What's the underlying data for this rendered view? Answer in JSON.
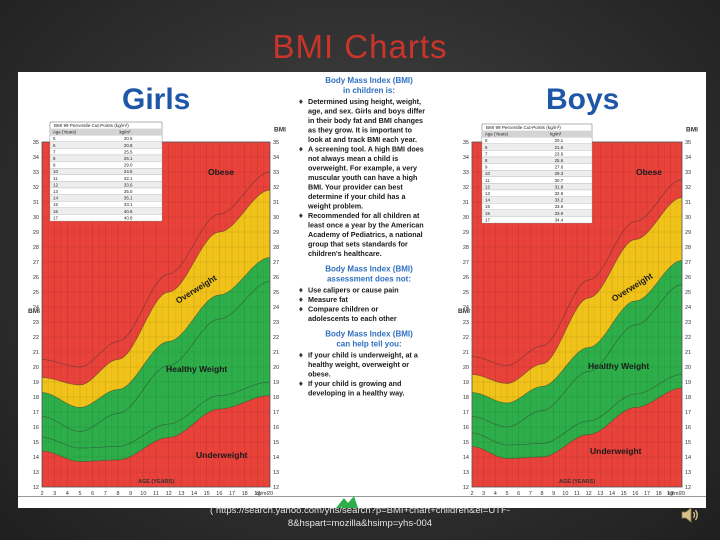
{
  "slide": {
    "title": "BMI Charts",
    "source_line1": "( https://search.yahoo.com/yhs/search?p=BMI+chart+children&ei=UTF-",
    "source_line2": "8&hspart=mozilla&hsimp=yhs-004"
  },
  "colors": {
    "title": "#c9342b",
    "obese": "#e8423a",
    "overweight": "#f0c21a",
    "healthy": "#2eae4a",
    "underweight": "#e8423a",
    "heading_blue": "#1f57a8",
    "info_blue": "#2f6fc0"
  },
  "charts": {
    "girls_title": "Girls",
    "boys_title": "Boys",
    "zones": {
      "obese": "Obese",
      "overweight": "Overweight",
      "healthy": "Healthy Weight",
      "underweight": "Underweight"
    },
    "age_label": "AGE (YEARS)",
    "bmi_label": "BMI",
    "unit_label": "kg/m²",
    "bmi_ticks": [
      "12",
      "13",
      "14",
      "15",
      "16",
      "17",
      "18",
      "19",
      "20",
      "21",
      "22",
      "23",
      "24",
      "25",
      "26",
      "27",
      "28",
      "29",
      "30",
      "31",
      "32",
      "33",
      "34",
      "35"
    ],
    "age_ticks": [
      "2",
      "3",
      "4",
      "5",
      "6",
      "7",
      "8",
      "9",
      "10",
      "11",
      "12",
      "13",
      "14",
      "15",
      "16",
      "17",
      "18",
      "19",
      "20"
    ]
  },
  "cutpoint_tables": {
    "girls": {
      "title": "BMI 99 Percentile Cut-Points (kg/m²)",
      "header_age": "Age (Years)",
      "header_bmi": "kg/m²",
      "rows": [
        [
          "5",
          "20.5"
        ],
        [
          "6",
          "20.8"
        ],
        [
          "7",
          "25.5"
        ],
        [
          "8",
          "25.1"
        ],
        [
          "9",
          "29.0"
        ],
        [
          "10",
          "24.5"
        ],
        [
          "11",
          "32.1"
        ],
        [
          "12",
          "33.6"
        ],
        [
          "13",
          "35.0"
        ],
        [
          "14",
          "35.1"
        ],
        [
          "15",
          "33.1"
        ],
        [
          "16",
          "40.6"
        ],
        [
          "17",
          "40.8"
        ]
      ]
    },
    "boys": {
      "title": "BMI 99 Percentile Cut-Points (kg/m²)",
      "header_age": "Age (Years)",
      "header_bmi": "kg/m²",
      "rows": [
        [
          "5",
          "20.1"
        ],
        [
          "6",
          "21.6"
        ],
        [
          "7",
          "23.6"
        ],
        [
          "8",
          "25.6"
        ],
        [
          "9",
          "27.6"
        ],
        [
          "10",
          "29.3"
        ],
        [
          "11",
          "30.7"
        ],
        [
          "12",
          "31.8"
        ],
        [
          "13",
          "32.6"
        ],
        [
          "14",
          "33.2"
        ],
        [
          "15",
          "33.6"
        ],
        [
          "16",
          "33.9"
        ],
        [
          "17",
          "34.4"
        ]
      ]
    }
  },
  "info_panel": {
    "section1_title_line1": "Body Mass Index (BMI)",
    "section1_title_line2": "in children is:",
    "bullets1": [
      [
        "Determined using height, weight,",
        "age, and sex.  Girls and boys differ",
        "in their body fat and BMI changes",
        "as they grow.  It is important to",
        "look at and track BMI each year."
      ],
      [
        "A screening tool.  A high BMI does",
        "not always mean a child is",
        "overweight.  For example, a very",
        "muscular youth can have a high",
        "BMI.  Your provider can best",
        "determine if your child has a",
        "weight problem."
      ],
      [
        "Recommended for all children at",
        "least once a year by the American",
        "Academy of Pediatrics, a national",
        "group that sets standards for",
        "children's healthcare."
      ]
    ],
    "section2_title_line1": "Body Mass Index (BMI)",
    "section2_title_line2": "assessment does not:",
    "bullets2": [
      [
        "Use calipers or cause pain"
      ],
      [
        "Measure fat"
      ],
      [
        "Compare children or",
        "adolescents to each other"
      ]
    ],
    "section3_title_line1": "Body Mass Index (BMI)",
    "section3_title_line2": "can help tell you:",
    "bullets3": [
      [
        "If your child is underweight, at a",
        "healthy weight, overweight or",
        "obese."
      ],
      [
        "If your child is growing and",
        "developing in a healthy way."
      ]
    ]
  }
}
